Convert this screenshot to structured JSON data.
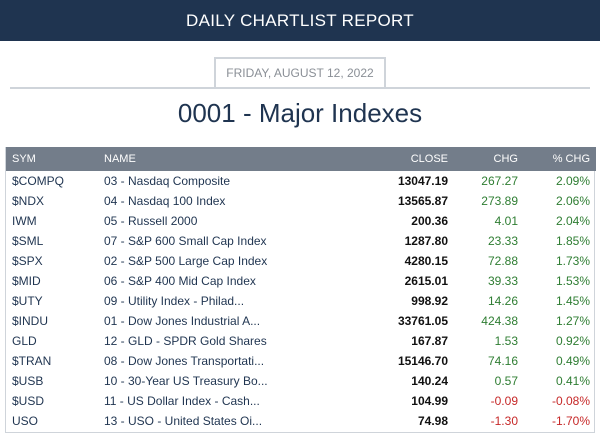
{
  "header": {
    "title": "DAILY CHARTLIST REPORT"
  },
  "report": {
    "date": "FRIDAY, AUGUST 12, 2022",
    "list_title": "0001 - Major Indexes"
  },
  "table": {
    "columns": [
      "SYM",
      "NAME",
      "CLOSE",
      "CHG",
      "% CHG"
    ],
    "rows": [
      {
        "sym": "$COMPQ",
        "name": "03 - Nasdaq Composite",
        "close": "13047.19",
        "chg": "267.27",
        "pct": "2.09%",
        "dir": "pos"
      },
      {
        "sym": "$NDX",
        "name": "04 - Nasdaq 100 Index",
        "close": "13565.87",
        "chg": "273.89",
        "pct": "2.06%",
        "dir": "pos"
      },
      {
        "sym": "IWM",
        "name": "05 - Russell 2000",
        "close": "200.36",
        "chg": "4.01",
        "pct": "2.04%",
        "dir": "pos"
      },
      {
        "sym": "$SML",
        "name": "07 - S&P 600 Small Cap Index",
        "close": "1287.80",
        "chg": "23.33",
        "pct": "1.85%",
        "dir": "pos"
      },
      {
        "sym": "$SPX",
        "name": "02 - S&P 500 Large Cap Index",
        "close": "4280.15",
        "chg": "72.88",
        "pct": "1.73%",
        "dir": "pos"
      },
      {
        "sym": "$MID",
        "name": "06 - S&P 400 Mid Cap Index",
        "close": "2615.01",
        "chg": "39.33",
        "pct": "1.53%",
        "dir": "pos"
      },
      {
        "sym": "$UTY",
        "name": "09 - Utility Index - Philad...",
        "close": "998.92",
        "chg": "14.26",
        "pct": "1.45%",
        "dir": "pos"
      },
      {
        "sym": "$INDU",
        "name": "01 - Dow Jones Industrial A...",
        "close": "33761.05",
        "chg": "424.38",
        "pct": "1.27%",
        "dir": "pos"
      },
      {
        "sym": "GLD",
        "name": "12 - GLD - SPDR Gold Shares",
        "close": "167.87",
        "chg": "1.53",
        "pct": "0.92%",
        "dir": "pos"
      },
      {
        "sym": "$TRAN",
        "name": "08 - Dow Jones Transportati...",
        "close": "15146.70",
        "chg": "74.16",
        "pct": "0.49%",
        "dir": "pos"
      },
      {
        "sym": "$USB",
        "name": "10 - 30-Year US Treasury Bo...",
        "close": "140.24",
        "chg": "0.57",
        "pct": "0.41%",
        "dir": "pos"
      },
      {
        "sym": "$USD",
        "name": "11 - US Dollar Index - Cash...",
        "close": "104.99",
        "chg": "-0.09",
        "pct": "-0.08%",
        "dir": "neg"
      },
      {
        "sym": "USO",
        "name": "13 - USO - United States Oi...",
        "close": "74.98",
        "chg": "-1.30",
        "pct": "-1.70%",
        "dir": "neg"
      }
    ]
  },
  "colors": {
    "header_bg": "#1f3450",
    "table_header_bg": "#737d8a",
    "positive": "#2e7d32",
    "negative": "#c62828"
  }
}
